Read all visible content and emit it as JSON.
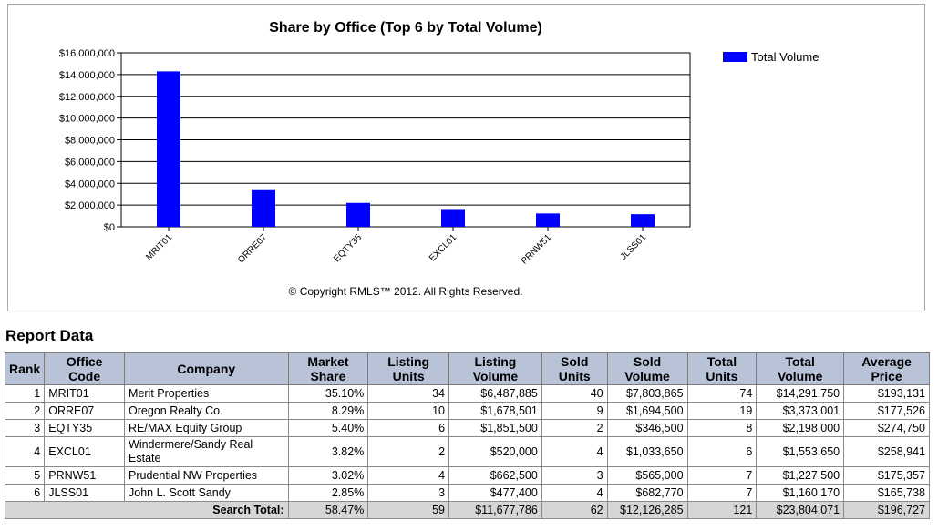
{
  "chart_data": {
    "type": "bar",
    "title": "Share by Office (Top 6 by Total Volume)",
    "categories": [
      "MRIT01",
      "ORRE07",
      "EQTY35",
      "EXCL01",
      "PRNW51",
      "JLSS01"
    ],
    "series": [
      {
        "name": "Total Volume",
        "values": [
          14291750,
          3373001,
          2198000,
          1553650,
          1227500,
          1160170
        ]
      }
    ],
    "ylim": [
      0,
      16000000
    ],
    "yticks": [
      0,
      2000000,
      4000000,
      6000000,
      8000000,
      10000000,
      12000000,
      14000000,
      16000000
    ],
    "ytick_labels": [
      "$0",
      "$2,000,000",
      "$4,000,000",
      "$6,000,000",
      "$8,000,000",
      "$10,000,000",
      "$12,000,000",
      "$14,000,000",
      "$16,000,000"
    ],
    "xlabel": "",
    "ylabel": "",
    "grid": true,
    "legend": "top-right",
    "bar_color": "#0000ff",
    "footnote": "© Copyright RMLS™ 2012.  All Rights Reserved."
  },
  "report": {
    "title": "Report Data",
    "headers": {
      "rank": "Rank",
      "office_code": [
        "Office",
        "Code"
      ],
      "company": "Company",
      "market_share": [
        "Market",
        "Share"
      ],
      "listing_units": [
        "Listing",
        "Units"
      ],
      "listing_volume": [
        "Listing",
        "Volume"
      ],
      "sold_units": [
        "Sold",
        "Units"
      ],
      "sold_volume": [
        "Sold",
        "Volume"
      ],
      "total_units": [
        "Total",
        "Units"
      ],
      "total_volume": [
        "Total",
        "Volume"
      ],
      "average_price": [
        "Average",
        "Price"
      ]
    },
    "rows": [
      {
        "rank": "1",
        "office_code": "MRIT01",
        "company": "Merit Properties",
        "market_share": "35.10%",
        "listing_units": "34",
        "listing_volume": "$6,487,885",
        "sold_units": "40",
        "sold_volume": "$7,803,865",
        "total_units": "74",
        "total_volume": "$14,291,750",
        "average_price": "$193,131"
      },
      {
        "rank": "2",
        "office_code": "ORRE07",
        "company": "Oregon Realty Co.",
        "market_share": "8.29%",
        "listing_units": "10",
        "listing_volume": "$1,678,501",
        "sold_units": "9",
        "sold_volume": "$1,694,500",
        "total_units": "19",
        "total_volume": "$3,373,001",
        "average_price": "$177,526"
      },
      {
        "rank": "3",
        "office_code": "EQTY35",
        "company": "RE/MAX Equity Group",
        "market_share": "5.40%",
        "listing_units": "6",
        "listing_volume": "$1,851,500",
        "sold_units": "2",
        "sold_volume": "$346,500",
        "total_units": "8",
        "total_volume": "$2,198,000",
        "average_price": "$274,750"
      },
      {
        "rank": "4",
        "office_code": "EXCL01",
        "company": "Windermere/Sandy Real Estate",
        "market_share": "3.82%",
        "listing_units": "2",
        "listing_volume": "$520,000",
        "sold_units": "4",
        "sold_volume": "$1,033,650",
        "total_units": "6",
        "total_volume": "$1,553,650",
        "average_price": "$258,941"
      },
      {
        "rank": "5",
        "office_code": "PRNW51",
        "company": "Prudential NW Properties",
        "market_share": "3.02%",
        "listing_units": "4",
        "listing_volume": "$662,500",
        "sold_units": "3",
        "sold_volume": "$565,000",
        "total_units": "7",
        "total_volume": "$1,227,500",
        "average_price": "$175,357"
      },
      {
        "rank": "6",
        "office_code": "JLSS01",
        "company": "John L. Scott Sandy",
        "market_share": "2.85%",
        "listing_units": "3",
        "listing_volume": "$477,400",
        "sold_units": "4",
        "sold_volume": "$682,770",
        "total_units": "7",
        "total_volume": "$1,160,170",
        "average_price": "$165,738"
      }
    ],
    "totals": {
      "label": "Search Total:",
      "market_share": "58.47%",
      "listing_units": "59",
      "listing_volume": "$11,677,786",
      "sold_units": "62",
      "sold_volume": "$12,126,285",
      "total_units": "121",
      "total_volume": "$23,804,071",
      "average_price": "$196,727"
    }
  }
}
